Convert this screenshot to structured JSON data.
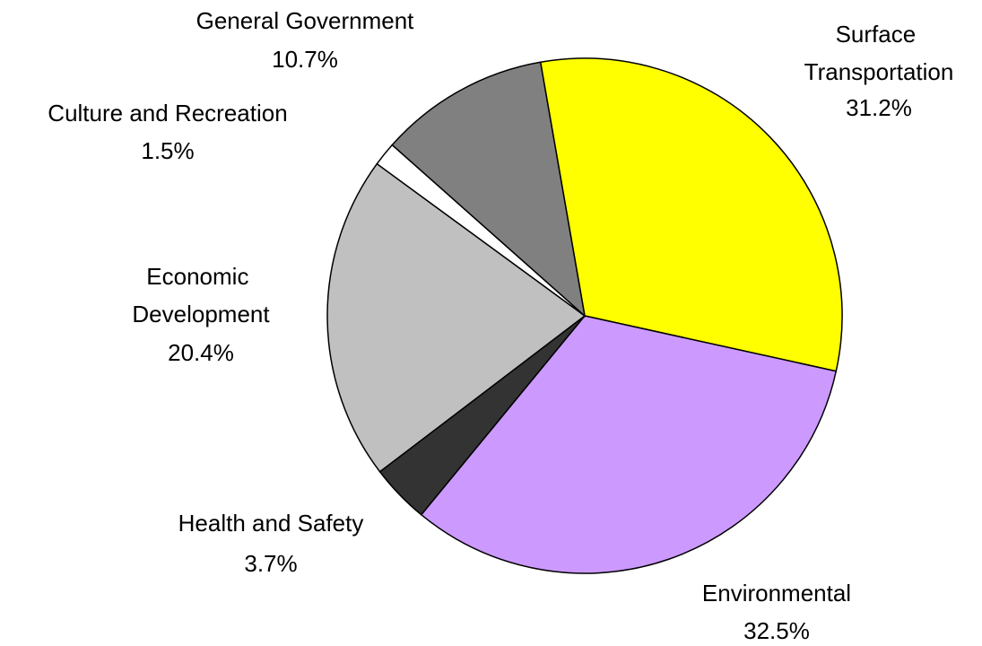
{
  "chart_data": {
    "type": "pie",
    "categories": [
      "Surface Transportation",
      "Environmental",
      "Health and Safety",
      "Economic Development",
      "Culture and Recreation",
      "General Government"
    ],
    "values": [
      31.2,
      32.5,
      3.7,
      20.4,
      1.5,
      10.7
    ],
    "value_labels": [
      "31.2%",
      "32.5%",
      "3.7%",
      "20.4%",
      "1.5%",
      "10.7%"
    ],
    "colors": [
      "#ffff00",
      "#cc99ff",
      "#333333",
      "#c0c0c0",
      "#ffffff",
      "#808080"
    ]
  }
}
